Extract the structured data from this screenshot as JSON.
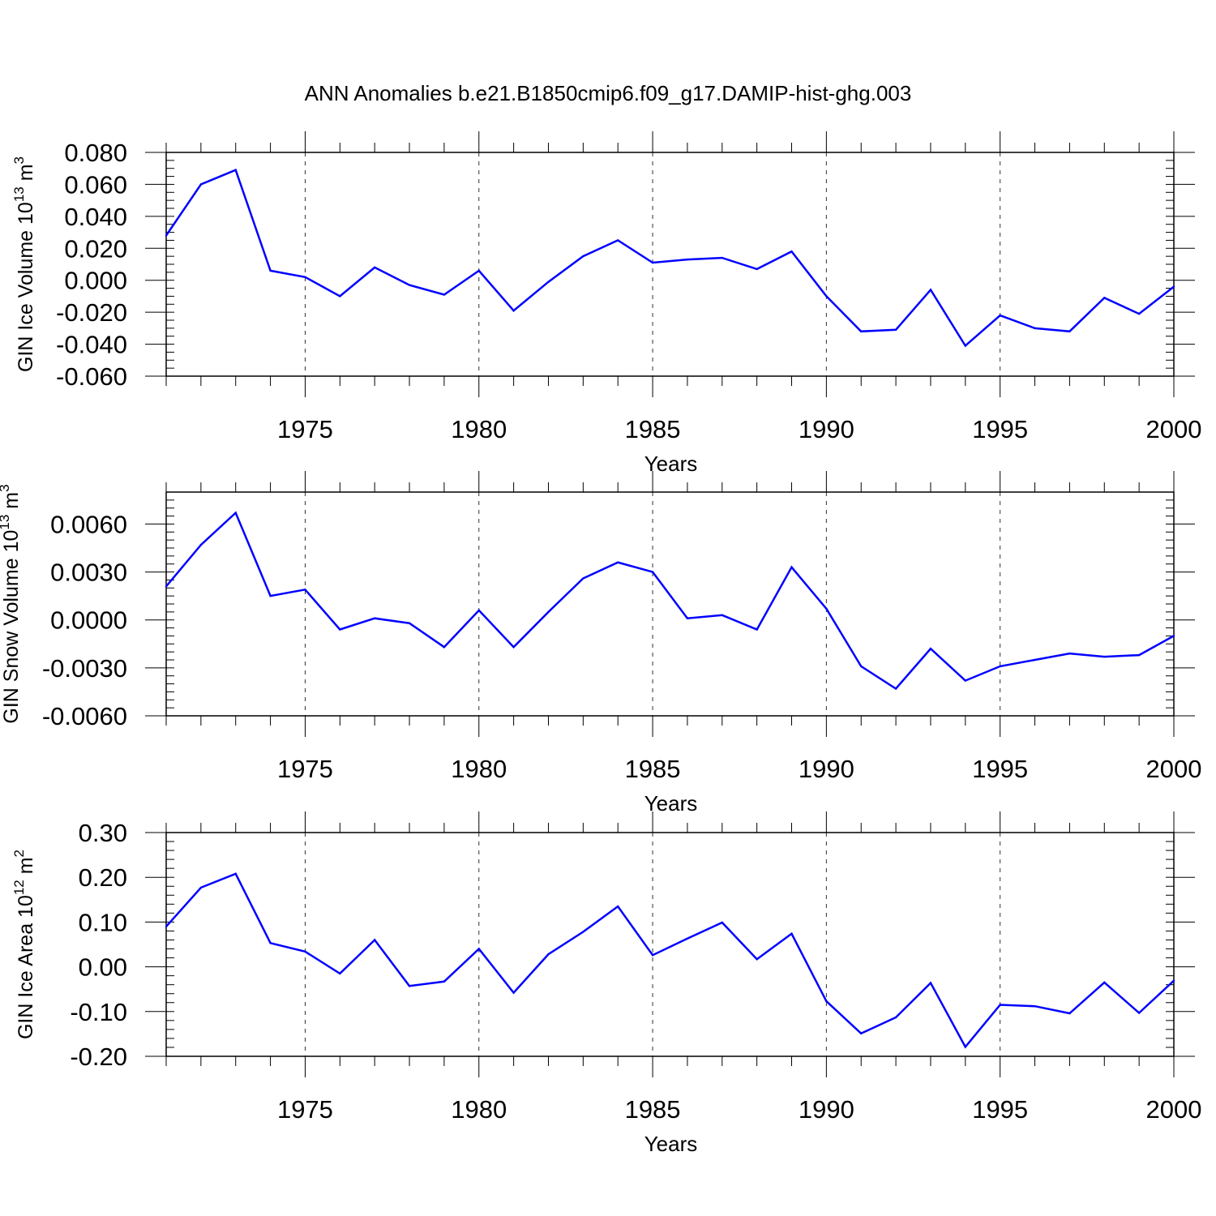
{
  "title": "ANN Anomalies b.e21.B1850cmip6.f09_g17.DAMIP-hist-ghg.003",
  "line_color": "#0000ff",
  "chart_data": [
    {
      "type": "line",
      "ylabel": {
        "base": "GIN Ice Volume 10",
        "exp": "13",
        "unit": " m",
        "unit_exp": "3"
      },
      "xlabel": "Years",
      "xlim": [
        1971,
        2000
      ],
      "ylim": [
        -0.06,
        0.08
      ],
      "xticks": [
        1975,
        1980,
        1985,
        1990,
        1995,
        2000
      ],
      "xtick_labels": [
        "1975",
        "1980",
        "1985",
        "1990",
        "1995",
        "2000"
      ],
      "yticks": [
        -0.06,
        -0.04,
        -0.02,
        0.0,
        0.02,
        0.04,
        0.06,
        0.08
      ],
      "ytick_labels": [
        "-0.060",
        "-0.040",
        "-0.020",
        "0.000",
        "0.020",
        "0.040",
        "0.060",
        "0.080"
      ],
      "y_minor_step": 0.005,
      "grid": "x-dashed",
      "x": [
        1971,
        1972,
        1973,
        1974,
        1975,
        1976,
        1977,
        1978,
        1979,
        1980,
        1981,
        1982,
        1983,
        1984,
        1985,
        1986,
        1987,
        1988,
        1989,
        1990,
        1991,
        1992,
        1993,
        1994,
        1995,
        1996,
        1997,
        1998,
        1999,
        2000
      ],
      "y": [
        0.028,
        0.06,
        0.069,
        0.006,
        0.002,
        -0.01,
        0.008,
        -0.003,
        -0.009,
        0.006,
        -0.019,
        -0.001,
        0.015,
        0.025,
        0.011,
        0.013,
        0.014,
        0.007,
        0.018,
        -0.01,
        -0.032,
        -0.031,
        -0.006,
        -0.041,
        -0.022,
        -0.03,
        -0.032,
        -0.011,
        -0.021,
        -0.004
      ]
    },
    {
      "type": "line",
      "ylabel": {
        "base": "GIN Snow Volume 10",
        "exp": "13",
        "unit": " m",
        "unit_exp": "3"
      },
      "xlabel": "Years",
      "xlim": [
        1971,
        2000
      ],
      "ylim": [
        -0.006,
        0.008
      ],
      "xticks": [
        1975,
        1980,
        1985,
        1990,
        1995,
        2000
      ],
      "xtick_labels": [
        "1975",
        "1980",
        "1985",
        "1990",
        "1995",
        "2000"
      ],
      "yticks": [
        -0.006,
        -0.003,
        0.0,
        0.003,
        0.006
      ],
      "ytick_labels": [
        "-0.0060",
        "-0.0030",
        "0.0000",
        "0.0030",
        "0.0060"
      ],
      "y_minor_step": 0.0005,
      "grid": "x-dashed",
      "x": [
        1971,
        1972,
        1973,
        1974,
        1975,
        1976,
        1977,
        1978,
        1979,
        1980,
        1981,
        1982,
        1983,
        1984,
        1985,
        1986,
        1987,
        1988,
        1989,
        1990,
        1991,
        1992,
        1993,
        1994,
        1995,
        1996,
        1997,
        1998,
        1999,
        2000
      ],
      "y": [
        0.0021,
        0.0047,
        0.0067,
        0.0015,
        0.0019,
        -0.0006,
        0.0001,
        -0.0002,
        -0.0017,
        0.0006,
        -0.0017,
        0.0005,
        0.0026,
        0.0036,
        0.003,
        0.0001,
        0.0003,
        -0.0006,
        0.0033,
        0.0007,
        -0.0029,
        -0.0043,
        -0.0018,
        -0.0038,
        -0.0029,
        -0.0025,
        -0.0021,
        -0.0023,
        -0.0022,
        -0.001
      ]
    },
    {
      "type": "line",
      "ylabel": {
        "base": "GIN Ice Area 10",
        "exp": "12",
        "unit": " m",
        "unit_exp": "2"
      },
      "xlabel": "Years",
      "xlim": [
        1971,
        2000
      ],
      "ylim": [
        -0.2,
        0.3
      ],
      "xticks": [
        1975,
        1980,
        1985,
        1990,
        1995,
        2000
      ],
      "xtick_labels": [
        "1975",
        "1980",
        "1985",
        "1990",
        "1995",
        "2000"
      ],
      "yticks": [
        -0.2,
        -0.1,
        0.0,
        0.1,
        0.2,
        0.3
      ],
      "ytick_labels": [
        "-0.20",
        "-0.10",
        "0.00",
        "0.10",
        "0.20",
        "0.30"
      ],
      "y_minor_step": 0.02,
      "grid": "x-dashed",
      "x": [
        1971,
        1972,
        1973,
        1974,
        1975,
        1976,
        1977,
        1978,
        1979,
        1980,
        1981,
        1982,
        1983,
        1984,
        1985,
        1986,
        1987,
        1988,
        1989,
        1990,
        1991,
        1992,
        1993,
        1994,
        1995,
        1996,
        1997,
        1998,
        1999,
        2000
      ],
      "y": [
        0.09,
        0.177,
        0.208,
        0.053,
        0.034,
        -0.015,
        0.06,
        -0.043,
        -0.033,
        0.04,
        -0.058,
        0.028,
        0.078,
        0.135,
        0.026,
        0.063,
        0.099,
        0.017,
        0.074,
        -0.077,
        -0.149,
        -0.113,
        -0.036,
        -0.179,
        -0.085,
        -0.088,
        -0.104,
        -0.035,
        -0.103,
        -0.031
      ]
    }
  ]
}
